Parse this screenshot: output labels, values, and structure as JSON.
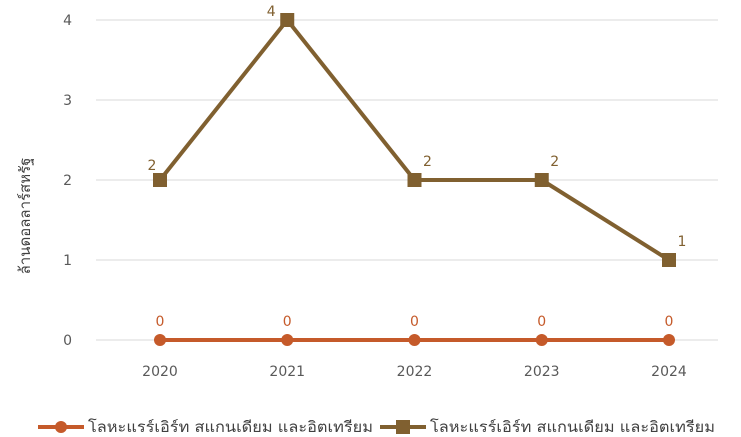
{
  "chart_data": {
    "type": "line",
    "title": "",
    "xlabel": "",
    "ylabel": "ล้านดอลลาร์สหรัฐ",
    "categories": [
      "2020",
      "2021",
      "2022",
      "2023",
      "2024"
    ],
    "ylim": [
      0,
      4
    ],
    "yticks": [
      0,
      1,
      2,
      3,
      4
    ],
    "grid": true,
    "legend": "bottom",
    "series": [
      {
        "name": "โลหะแรร์เอิร์ท สแกนเดียม และอิตเทรียม",
        "values": [
          0,
          0,
          0,
          0,
          0
        ],
        "color": "#C55A2A",
        "marker": "circle"
      },
      {
        "name": "โลหะแรร์เอิร์ท สแกนเดียม และอิตเทรียม",
        "values": [
          2,
          4,
          2,
          2,
          1
        ],
        "color": "#806030",
        "marker": "square"
      }
    ]
  }
}
